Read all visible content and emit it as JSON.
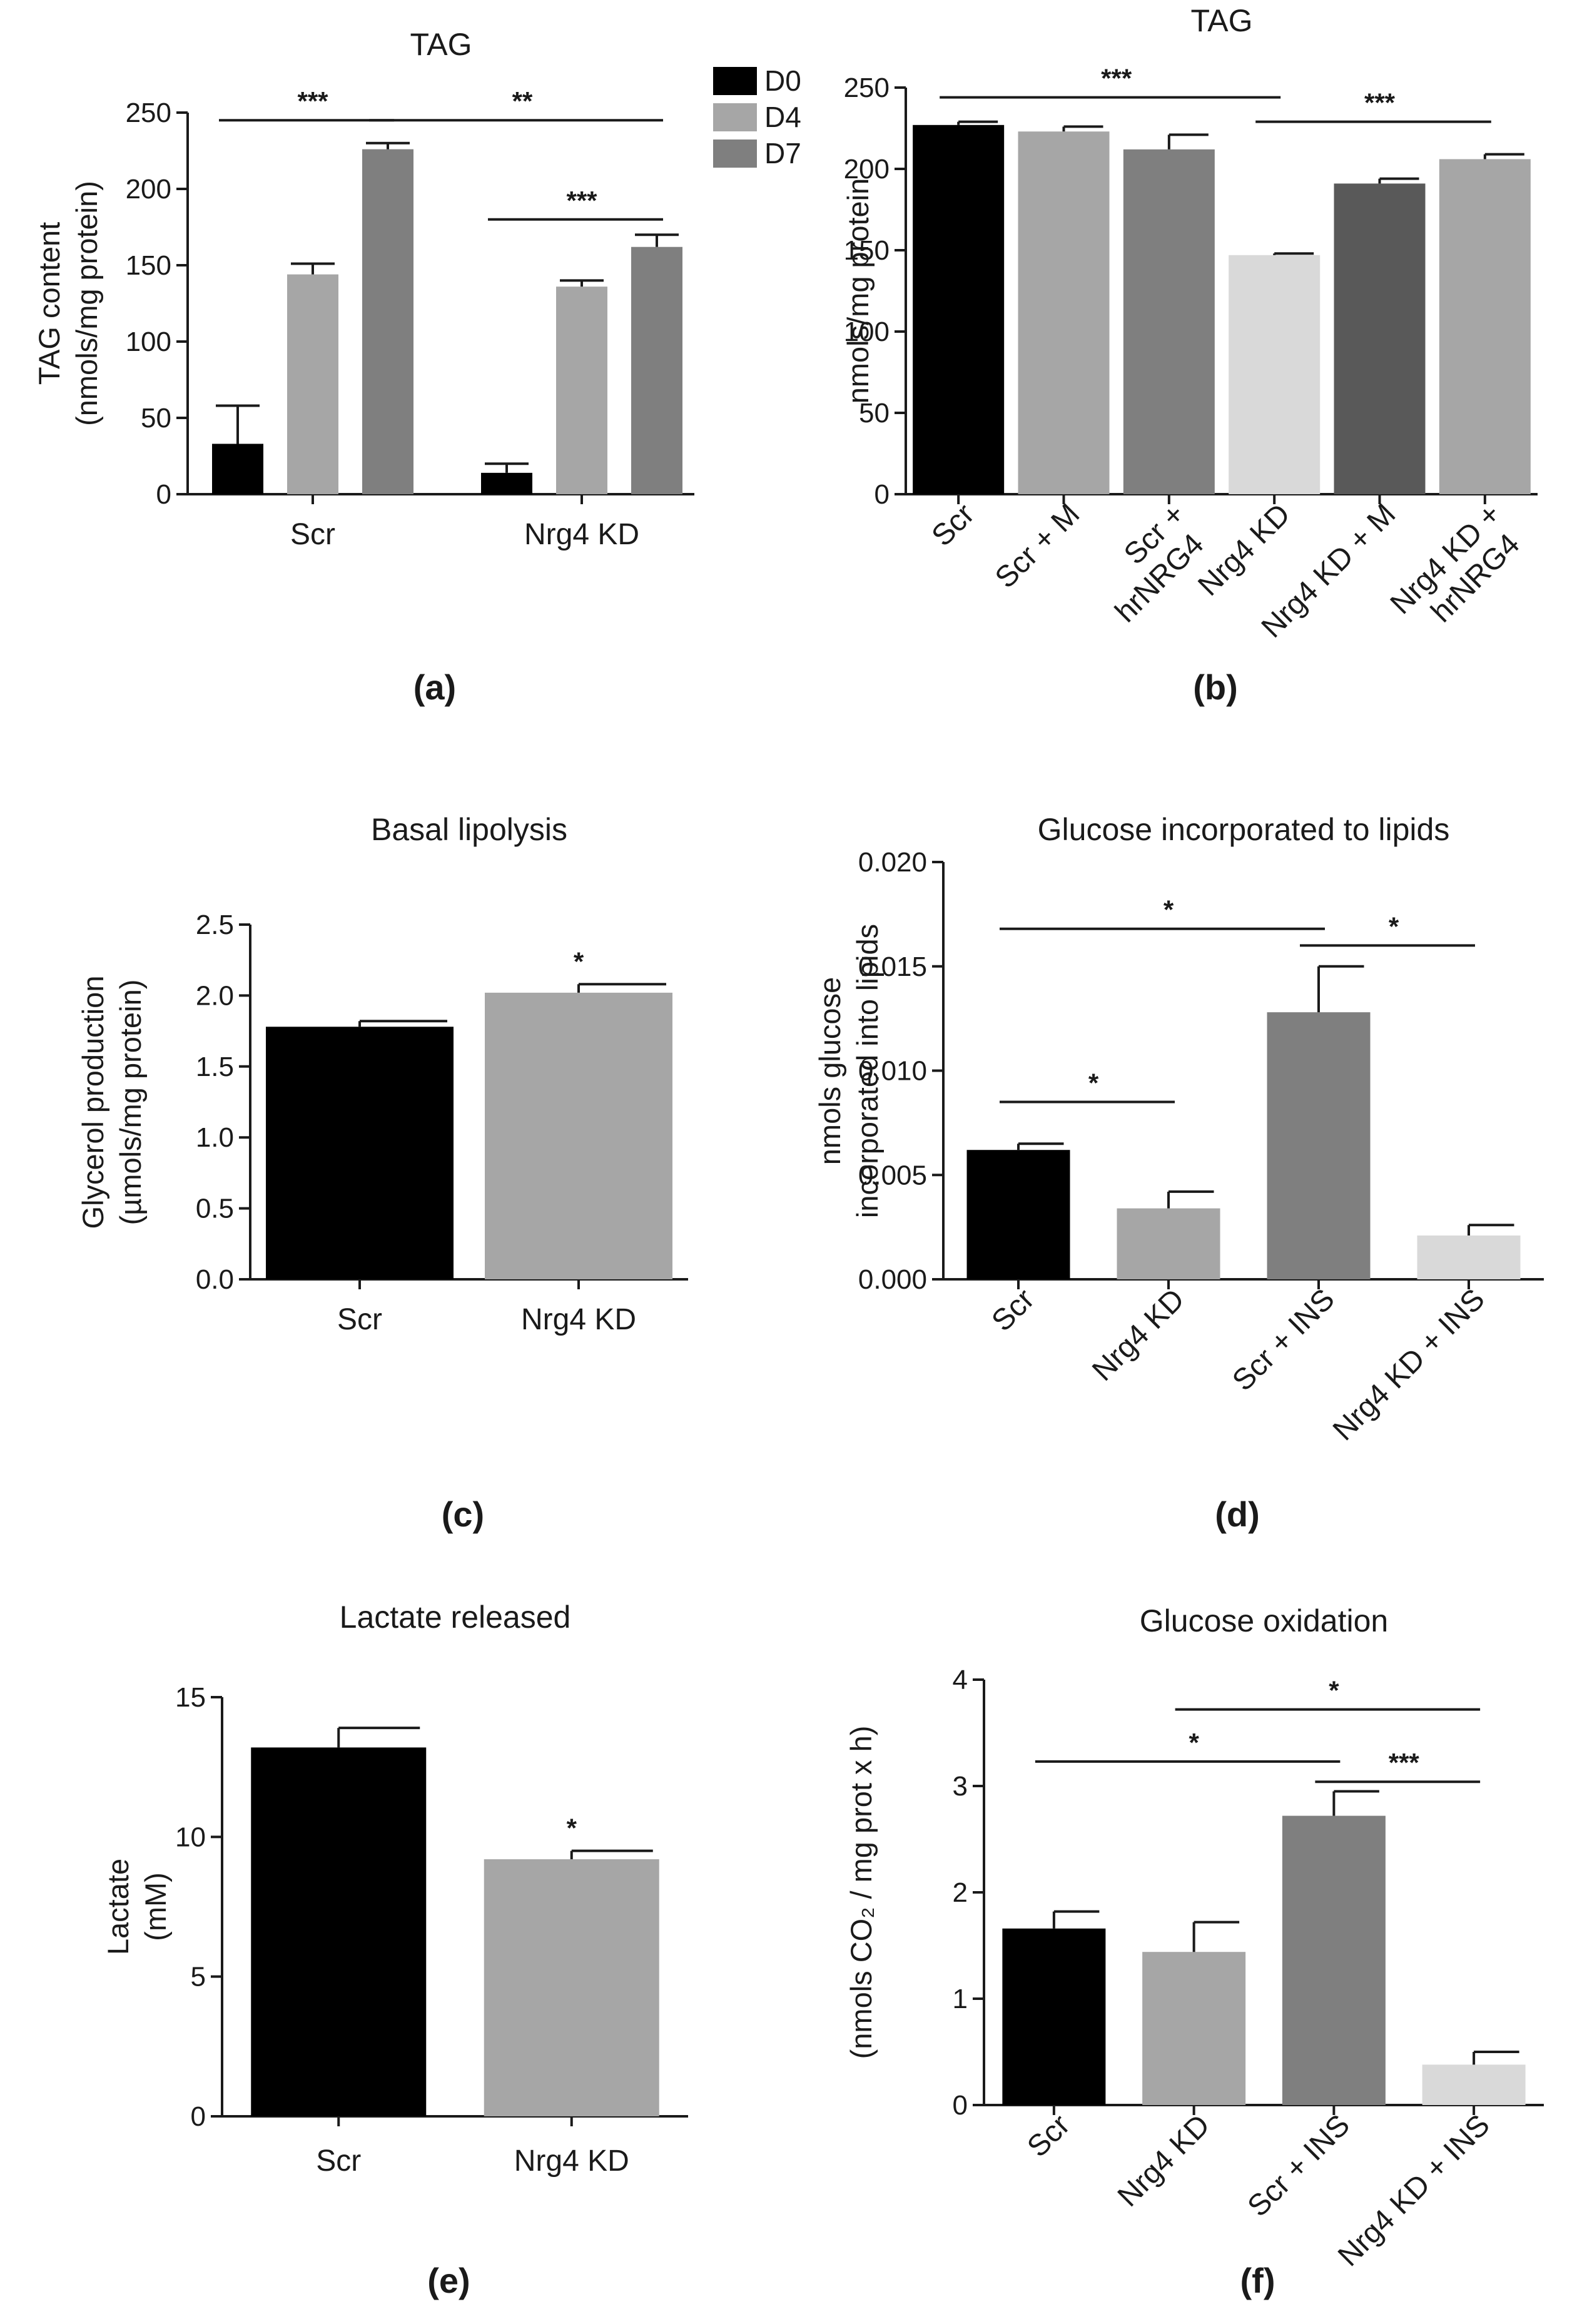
{
  "chart_data": [
    {
      "id": "a",
      "type": "bar",
      "panel_label": "(a)",
      "title": "TAG",
      "ylabel": [
        "TAG content",
        "(nmols/mg protein)"
      ],
      "xlabel": "",
      "ylim": [
        0,
        250
      ],
      "yticks": [
        0,
        50,
        100,
        150,
        200,
        250
      ],
      "categories": [
        "Scr",
        "Nrg4 KD"
      ],
      "series": [
        {
          "name": "D0",
          "color": "#000000",
          "values": [
            33,
            14
          ],
          "errors": [
            25,
            6
          ]
        },
        {
          "name": "D4",
          "color": "#a6a6a6",
          "values": [
            144,
            136
          ],
          "errors": [
            7,
            4
          ]
        },
        {
          "name": "D7",
          "color": "#7f7f7f",
          "values": [
            226,
            162
          ],
          "errors": [
            4,
            8
          ]
        }
      ],
      "significance": [
        {
          "label": "***",
          "from": [
            0,
            0
          ],
          "to": [
            0,
            2
          ],
          "y": 245
        },
        {
          "label": "**",
          "from": [
            0,
            2
          ],
          "to": [
            1,
            2
          ],
          "y": 245
        },
        {
          "label": "***",
          "from": [
            1,
            0
          ],
          "to": [
            1,
            2
          ],
          "y": 180
        }
      ],
      "legend_position": "top-right"
    },
    {
      "id": "b",
      "type": "bar",
      "panel_label": "(b)",
      "title": "TAG",
      "ylabel": [
        "nmols/mg protein"
      ],
      "ylim": [
        0,
        250
      ],
      "yticks": [
        0,
        50,
        100,
        150,
        200,
        250
      ],
      "categories": [
        "Scr",
        "Scr + M",
        "Scr +\nhrNRG4",
        "Nrg4 KD",
        "Nrg4 KD + M",
        "Nrg4 KD +\nhrNRG4"
      ],
      "values": [
        227,
        223,
        212,
        147,
        191,
        206
      ],
      "errors": [
        2,
        3,
        9,
        1,
        3,
        3
      ],
      "colors": [
        "#000000",
        "#a6a6a6",
        "#7f7f7f",
        "#d9d9d9",
        "#595959",
        "#a6a6a6"
      ],
      "rotated_labels": true,
      "significance": [
        {
          "label": "***",
          "from": 0,
          "to": 3,
          "y": 244
        },
        {
          "label": "***",
          "from": 3,
          "to": 5,
          "y": 229
        }
      ]
    },
    {
      "id": "c",
      "type": "bar",
      "panel_label": "(c)",
      "title": "Basal lipolysis",
      "ylabel": [
        "Glycerol production",
        "(µmols/mg protein)"
      ],
      "ylim": [
        0,
        2.5
      ],
      "yticks": [
        "0.0",
        "0.5",
        "1.0",
        "1.5",
        "2.0",
        "2.5"
      ],
      "categories": [
        "Scr",
        "Nrg4 KD"
      ],
      "values": [
        1.78,
        2.02
      ],
      "errors": [
        0.04,
        0.06
      ],
      "colors": [
        "#000000",
        "#a6a6a6"
      ],
      "significance": [
        {
          "label": "*",
          "over": 1
        }
      ]
    },
    {
      "id": "d",
      "type": "bar",
      "panel_label": "(d)",
      "title": "Glucose incorporated to lipids",
      "ylabel": [
        "nmols glucose",
        "incorporated into lipids"
      ],
      "ylim": [
        0,
        0.02
      ],
      "yticks": [
        "0.000",
        "0.005",
        "0.010",
        "0.015",
        "0.020"
      ],
      "categories": [
        "Scr",
        "Nrg4 KD",
        "Scr + INS",
        "Nrg4 KD + INS"
      ],
      "values": [
        0.0062,
        0.0034,
        0.0128,
        0.0021
      ],
      "errors": [
        0.0003,
        0.0008,
        0.0022,
        0.0005
      ],
      "colors": [
        "#000000",
        "#a6a6a6",
        "#7f7f7f",
        "#d9d9d9"
      ],
      "rotated_labels": true,
      "significance": [
        {
          "label": "*",
          "from": 0,
          "to": 2,
          "y": 0.0168
        },
        {
          "label": "*",
          "from": 2,
          "to": 3,
          "y": 0.016
        },
        {
          "label": "*",
          "from": 0,
          "to": 1,
          "y": 0.0085
        }
      ]
    },
    {
      "id": "e",
      "type": "bar",
      "panel_label": "(e)",
      "title": "Lactate released",
      "ylabel": [
        "Lactate",
        "(mM)"
      ],
      "ylim": [
        0,
        15
      ],
      "yticks": [
        0,
        5,
        10,
        15
      ],
      "categories": [
        "Scr",
        "Nrg4 KD"
      ],
      "values": [
        13.2,
        9.2
      ],
      "errors": [
        0.7,
        0.3
      ],
      "colors": [
        "#000000",
        "#a6a6a6"
      ],
      "significance": [
        {
          "label": "*",
          "over": 1
        }
      ]
    },
    {
      "id": "f",
      "type": "bar",
      "panel_label": "(f)",
      "title": "Glucose oxidation",
      "ylabel": [
        "(nmols CO₂ / mg prot x h)"
      ],
      "ylim": [
        0,
        4
      ],
      "yticks": [
        0,
        1,
        2,
        3,
        4
      ],
      "categories": [
        "Scr",
        "Nrg4 KD",
        "Scr + INS",
        "Nrg4 KD + INS"
      ],
      "values": [
        1.66,
        1.44,
        2.72,
        0.38
      ],
      "errors": [
        0.16,
        0.28,
        0.23,
        0.12
      ],
      "colors": [
        "#000000",
        "#a6a6a6",
        "#7f7f7f",
        "#d9d9d9"
      ],
      "rotated_labels": true,
      "significance": [
        {
          "label": "*",
          "from": 1,
          "to": 3,
          "y": 3.72
        },
        {
          "label": "*",
          "from": 0,
          "to": 2,
          "y": 3.23
        },
        {
          "label": "***",
          "from": 2,
          "to": 3,
          "y": 3.04
        }
      ]
    }
  ]
}
